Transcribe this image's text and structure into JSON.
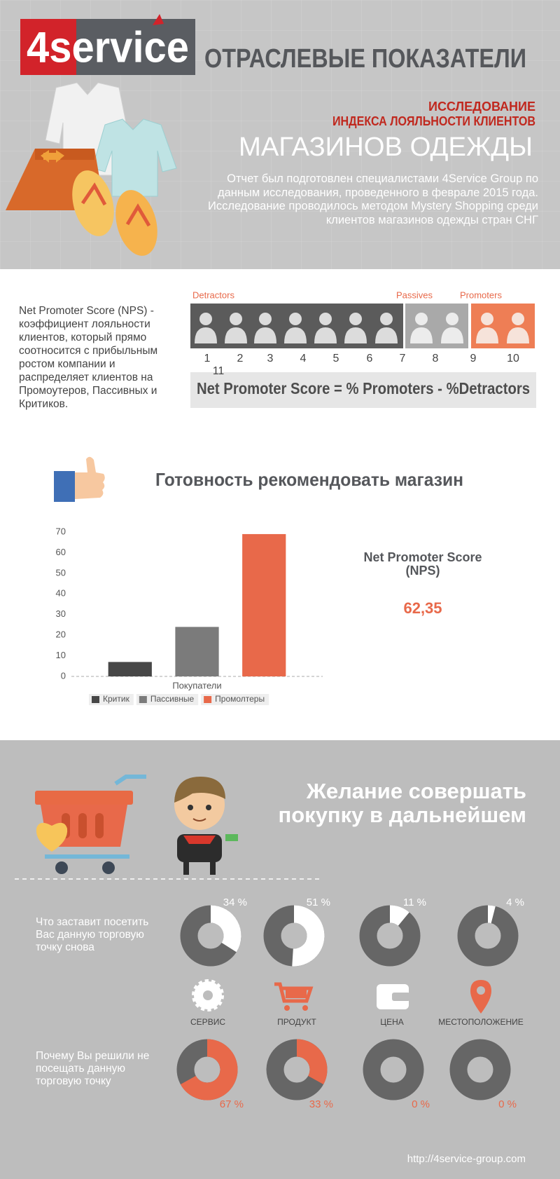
{
  "header": {
    "logo": "4service",
    "title": "ОТРАСЛЕВЫЕ ПОКАЗАТЕЛИ",
    "study": "ИССЛЕДОВАНИЕ",
    "study_index": "ИНДЕКСА ЛОЯЛЬНОСТИ КЛИЕНТОВ",
    "heading": "МАГАЗИНОВ ОДЕЖДЫ",
    "description": "Отчет был подготовлен специалистами 4Service Group по данным исследования, проведенного в феврале 2015 года. Исследование проводилось методом Mystery Shopping среди клиентов магазинов одежды стран СНГ"
  },
  "nps": {
    "definition": "Net Promoter Score (NPS) - коэффициент лояльности клиентов, который прямо соотносится с прибыльным ростом компании  и распределяет клиентов на Промоутеров, Пассивных и Критиков.",
    "groups": [
      "Detractors",
      "Passives",
      "Promoters"
    ],
    "scale": [
      1,
      2,
      3,
      4,
      5,
      6,
      7,
      8,
      9,
      10
    ],
    "extra": 11,
    "formula": "Net Promoter Score  =  % Promoters - %Detractors"
  },
  "recommend": {
    "title": "Готовность рекомендовать магазин",
    "nps_label": "Net Promoter Score (NPS)",
    "nps_value": "62,35"
  },
  "purchase": {
    "title": "Желание совершать покупку в дальнейшем",
    "categories": [
      "СЕРВИС",
      "ПРОДУКТ",
      "ЦЕНА",
      "МЕСТОПОЛОЖЕНИЕ"
    ],
    "url": "http://4service-group.com"
  },
  "chart_data": [
    {
      "type": "bar",
      "categories": [
        "Покупатели"
      ],
      "series": [
        {
          "name": "Критик",
          "color": "#474747",
          "values": [
            7
          ]
        },
        {
          "name": "Пассивные",
          "color": "#7b7b7b",
          "values": [
            24
          ]
        },
        {
          "name": "Промолтеры",
          "color": "#e8694a",
          "values": [
            69
          ]
        }
      ],
      "ylim": [
        0,
        70
      ],
      "yticks": [
        0,
        10,
        20,
        30,
        40,
        50,
        60,
        70
      ],
      "legend": "bottom"
    },
    {
      "type": "donut",
      "title": "Что заставит посетить Вас данную торговую точку снова",
      "values": [
        34,
        51,
        11,
        4
      ],
      "value_labels": [
        "34 %",
        "51 %",
        "11 %",
        "4 %"
      ],
      "color": "#ffffff",
      "track_color": "#666666"
    },
    {
      "type": "donut",
      "title": "Почему Вы решили не посещать данную торговую точку",
      "values": [
        67,
        33,
        0,
        0
      ],
      "value_labels": [
        "67 %",
        "33 %",
        "0 %",
        "0 %"
      ],
      "color": "#e8694a",
      "track_color": "#666666"
    }
  ]
}
